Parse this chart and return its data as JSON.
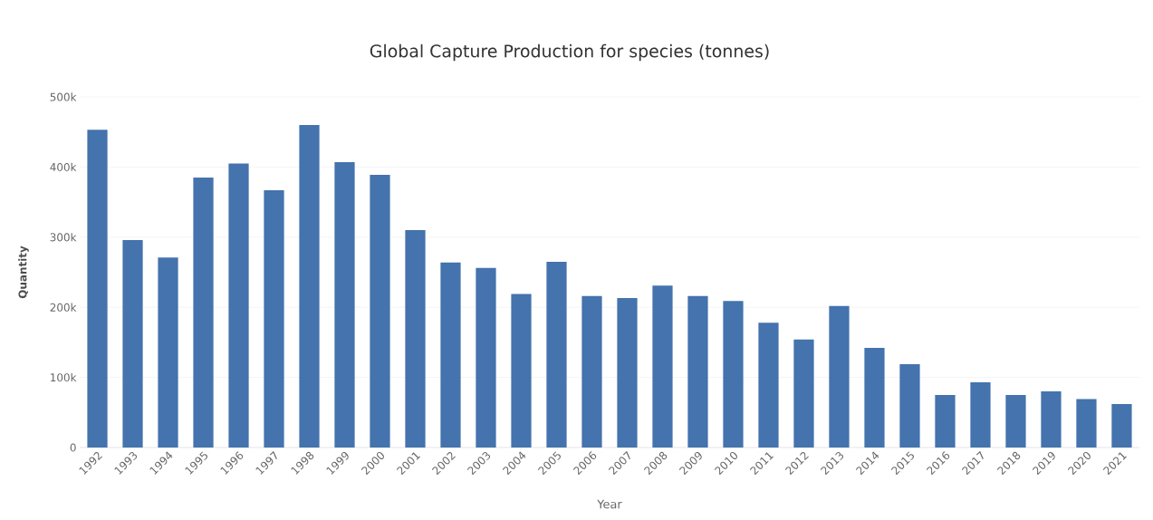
{
  "chart_data": {
    "type": "bar",
    "title": "Global Capture Production for species (tonnes)",
    "xlabel": "Year",
    "ylabel": "Quantity",
    "categories": [
      "1992",
      "1993",
      "1994",
      "1995",
      "1996",
      "1997",
      "1998",
      "1999",
      "2000",
      "2001",
      "2002",
      "2003",
      "2004",
      "2005",
      "2006",
      "2007",
      "2008",
      "2009",
      "2010",
      "2011",
      "2012",
      "2013",
      "2014",
      "2015",
      "2016",
      "2017",
      "2018",
      "2019",
      "2020",
      "2021"
    ],
    "values": [
      453000,
      296000,
      271000,
      385000,
      405000,
      367000,
      460000,
      407000,
      389000,
      310000,
      264000,
      256000,
      219000,
      265000,
      216000,
      213000,
      231000,
      216000,
      209000,
      178000,
      154000,
      202000,
      142000,
      119000,
      75000,
      93000,
      75000,
      80000,
      69000,
      62000
    ],
    "color": "#4473ad",
    "ylim": [
      0,
      500000
    ],
    "yticks": [
      {
        "value": 0,
        "label": "0"
      },
      {
        "value": 100000,
        "label": "100k"
      },
      {
        "value": 200000,
        "label": "200k"
      },
      {
        "value": 300000,
        "label": "300k"
      },
      {
        "value": 400000,
        "label": "400k"
      },
      {
        "value": 500000,
        "label": "500k"
      }
    ],
    "grid": "y"
  }
}
